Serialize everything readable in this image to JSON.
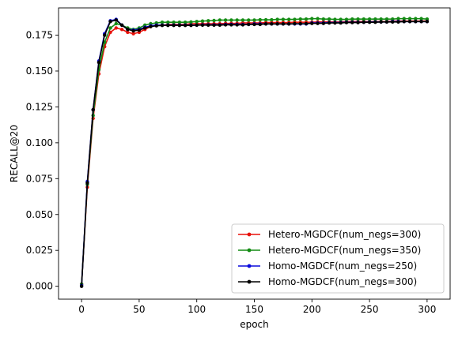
{
  "chart_data": {
    "type": "line",
    "title": "",
    "xlabel": "epoch",
    "ylabel": "RECALL@20",
    "xlim": [
      -20,
      320
    ],
    "ylim": [
      -0.009,
      0.194
    ],
    "xticks": [
      0,
      50,
      100,
      150,
      200,
      250,
      300
    ],
    "xtick_labels": [
      "0",
      "50",
      "100",
      "150",
      "200",
      "250",
      "300"
    ],
    "yticks": [
      0.0,
      0.025,
      0.05,
      0.075,
      0.1,
      0.125,
      0.15,
      0.175
    ],
    "ytick_labels": [
      "0.000",
      "0.025",
      "0.050",
      "0.075",
      "0.100",
      "0.125",
      "0.150",
      "0.175"
    ],
    "grid": false,
    "legend_position": "lower-right",
    "x": [
      0,
      5,
      10,
      15,
      20,
      25,
      30,
      35,
      40,
      45,
      50,
      55,
      60,
      65,
      70,
      75,
      80,
      85,
      90,
      95,
      100,
      105,
      110,
      115,
      120,
      125,
      130,
      135,
      140,
      145,
      150,
      155,
      160,
      165,
      170,
      175,
      180,
      185,
      190,
      195,
      200,
      205,
      210,
      215,
      220,
      225,
      230,
      235,
      240,
      245,
      250,
      255,
      260,
      265,
      270,
      275,
      280,
      285,
      290,
      295,
      300
    ],
    "series": [
      {
        "name": "Hetero-MGDCF(num_negs=300)",
        "color": "#e8110a",
        "values": [
          0.0015,
          0.069,
          0.117,
          0.148,
          0.167,
          0.177,
          0.18,
          0.179,
          0.177,
          0.176,
          0.177,
          0.179,
          0.181,
          0.182,
          0.182,
          0.1825,
          0.1825,
          0.1825,
          0.1825,
          0.183,
          0.183,
          0.183,
          0.183,
          0.183,
          0.183,
          0.1832,
          0.1832,
          0.1832,
          0.1835,
          0.1835,
          0.1835,
          0.1835,
          0.1838,
          0.1838,
          0.1838,
          0.1838,
          0.1838,
          0.184,
          0.184,
          0.184,
          0.184,
          0.1842,
          0.1842,
          0.1842,
          0.1842,
          0.1842,
          0.1845,
          0.1845,
          0.1845,
          0.1845,
          0.1845,
          0.1845,
          0.1845,
          0.1845,
          0.1848,
          0.1848,
          0.1848,
          0.1848,
          0.1848,
          0.1848,
          0.1848
        ]
      },
      {
        "name": "Hetero-MGDCF(num_negs=350)",
        "color": "#148c14",
        "values": [
          0.0015,
          0.071,
          0.119,
          0.151,
          0.17,
          0.18,
          0.183,
          0.182,
          0.18,
          0.179,
          0.18,
          0.182,
          0.183,
          0.1835,
          0.184,
          0.184,
          0.184,
          0.184,
          0.184,
          0.1842,
          0.1845,
          0.1848,
          0.185,
          0.1852,
          0.1855,
          0.1855,
          0.1855,
          0.1855,
          0.1855,
          0.1855,
          0.1855,
          0.1857,
          0.1857,
          0.1857,
          0.186,
          0.186,
          0.186,
          0.186,
          0.1862,
          0.1862,
          0.1865,
          0.1865,
          0.1862,
          0.1862,
          0.186,
          0.186,
          0.186,
          0.1862,
          0.1862,
          0.1862,
          0.1862,
          0.1862,
          0.1862,
          0.1862,
          0.1862,
          0.1865,
          0.1865,
          0.1865,
          0.1865,
          0.1865,
          0.1862
        ]
      },
      {
        "name": "Homo-MGDCF(num_negs=250)",
        "color": "#0a0adc",
        "values": [
          0.0005,
          0.073,
          0.123,
          0.157,
          0.176,
          0.185,
          0.186,
          0.182,
          0.179,
          0.1785,
          0.179,
          0.1805,
          0.1815,
          0.182,
          0.182,
          0.182,
          0.182,
          0.182,
          0.182,
          0.182,
          0.182,
          0.1822,
          0.1822,
          0.1822,
          0.1822,
          0.1825,
          0.1825,
          0.1825,
          0.1825,
          0.1825,
          0.1828,
          0.1828,
          0.1828,
          0.1828,
          0.1828,
          0.1828,
          0.1828,
          0.1828,
          0.1828,
          0.1828,
          0.1835,
          0.1835,
          0.1835,
          0.1838,
          0.1838,
          0.1838,
          0.184,
          0.184,
          0.184,
          0.184,
          0.1842,
          0.1842,
          0.1842,
          0.1842,
          0.1845,
          0.1845,
          0.1845,
          0.1845,
          0.1845,
          0.1845,
          0.1845
        ]
      },
      {
        "name": "Homo-MGDCF(num_negs=300)",
        "color": "#000000",
        "values": [
          0.0,
          0.072,
          0.123,
          0.156,
          0.175,
          0.1845,
          0.1855,
          0.182,
          0.179,
          0.178,
          0.1785,
          0.18,
          0.181,
          0.1815,
          0.1818,
          0.1818,
          0.1818,
          0.1818,
          0.1818,
          0.1818,
          0.182,
          0.182,
          0.182,
          0.182,
          0.182,
          0.1822,
          0.1822,
          0.1822,
          0.1822,
          0.1825,
          0.1825,
          0.1825,
          0.1828,
          0.1828,
          0.1828,
          0.1828,
          0.1828,
          0.183,
          0.183,
          0.183,
          0.1832,
          0.1832,
          0.1832,
          0.1835,
          0.1835,
          0.1835,
          0.1838,
          0.1838,
          0.1838,
          0.184,
          0.184,
          0.184,
          0.1842,
          0.1842,
          0.1842,
          0.1842,
          0.1845,
          0.1845,
          0.1845,
          0.1845,
          0.1845
        ]
      }
    ]
  }
}
